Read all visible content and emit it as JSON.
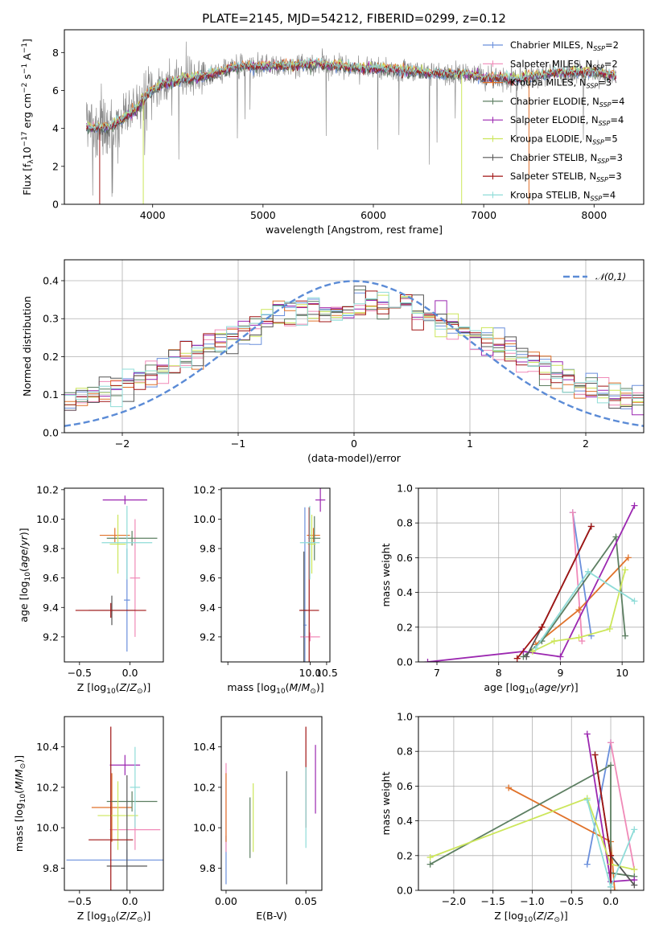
{
  "figure": {
    "title": "PLATE=2145, MJD=54212, FIBERID=0299, z=0.12"
  },
  "colors": {
    "Chabrier MILES": "#6a8fdc",
    "Salpeter MILES": "#f08ab8",
    "Kroupa MILES": "#e0722a",
    "Chabrier ELODIE": "#5d7f62",
    "Salpeter ELODIE": "#9b27b0",
    "Kroupa ELODIE": "#cce65a",
    "Chabrier STELIB": "#555555",
    "Salpeter STELIB": "#a01414",
    "Kroupa STELIB": "#8fdcd8",
    "data": "#808080",
    "normal": "#5b8bd6"
  },
  "chart_data": [
    {
      "id": "spectrum",
      "type": "line",
      "xlabel": "wavelength [Angstrom, rest frame]",
      "ylabel": "Flux [f_λ 10^-17 erg cm^-2 s^-1 A^-1]",
      "xlim": [
        3200,
        8450
      ],
      "ylim": [
        0,
        9.2
      ],
      "xticks": [
        4000,
        5000,
        6000,
        7000,
        8000
      ],
      "yticks": [
        0,
        2,
        4,
        6,
        8
      ],
      "grid": false,
      "legend_position": "top-right",
      "series": [
        {
          "name": "Chabrier MILES, N_SSP=2",
          "key": "Chabrier MILES"
        },
        {
          "name": "Salpeter MILES, N_SSP=2",
          "key": "Salpeter MILES"
        },
        {
          "name": "Kroupa MILES, N_SSP=3",
          "key": "Kroupa MILES"
        },
        {
          "name": "Chabrier ELODIE, N_SSP=4",
          "key": "Chabrier ELODIE"
        },
        {
          "name": "Salpeter ELODIE, N_SSP=4",
          "key": "Salpeter ELODIE"
        },
        {
          "name": "Kroupa ELODIE, N_SSP=5",
          "key": "Kroupa ELODIE"
        },
        {
          "name": "Chabrier STELIB, N_SSP=3",
          "key": "Chabrier STELIB"
        },
        {
          "name": "Salpeter STELIB, N_SSP=3",
          "key": "Salpeter STELIB"
        },
        {
          "name": "Kroupa STELIB, N_SSP=4",
          "key": "Kroupa STELIB"
        }
      ],
      "continuum": [
        [
          3400,
          4.1
        ],
        [
          3500,
          4.0
        ],
        [
          3600,
          4.0
        ],
        [
          3700,
          4.4
        ],
        [
          3850,
          5.0
        ],
        [
          3950,
          5.8
        ],
        [
          4100,
          6.4
        ],
        [
          4300,
          6.6
        ],
        [
          4500,
          6.8
        ],
        [
          4800,
          7.3
        ],
        [
          5200,
          7.3
        ],
        [
          5500,
          7.4
        ],
        [
          5800,
          7.2
        ],
        [
          6200,
          7.1
        ],
        [
          6500,
          6.9
        ],
        [
          6800,
          6.9
        ],
        [
          7000,
          6.7
        ],
        [
          7300,
          6.6
        ],
        [
          7600,
          6.9
        ],
        [
          8000,
          7.0
        ],
        [
          8200,
          6.7
        ]
      ]
    },
    {
      "id": "histogram",
      "type": "bar",
      "xlabel": "(data-model)/error",
      "ylabel": "Normed distribution",
      "xlim": [
        -2.5,
        2.5
      ],
      "ylim": [
        0,
        0.455
      ],
      "xticks": [
        -2,
        -1,
        0,
        1,
        2
      ],
      "yticks": [
        0.0,
        0.1,
        0.2,
        0.3,
        0.4
      ],
      "grid": true,
      "legend_position": "top-right",
      "legend": [
        "𝒩(0,1)"
      ],
      "bin_width": 0.1,
      "normal_curve": {
        "mean": 0,
        "sigma": 1
      }
    },
    {
      "id": "age-vs-Z",
      "type": "scatter",
      "xlabel": "Z [log10(Z/Z⊙)]",
      "ylabel": "age [log10(age/yr)]",
      "xlim": [
        -0.65,
        0.33
      ],
      "ylim": [
        9.03,
        10.21
      ],
      "xticks": [
        -0.5,
        0.0
      ],
      "yticks": [
        9.2,
        9.4,
        9.6,
        9.8,
        10.0,
        10.2
      ],
      "grid": false,
      "points": [
        {
          "model": "Chabrier MILES",
          "x": -0.03,
          "y": 9.45,
          "xerr": 0.03,
          "yerr": 0.35
        },
        {
          "model": "Salpeter MILES",
          "x": 0.05,
          "y": 9.6,
          "xerr": 0.05,
          "yerr": 0.4
        },
        {
          "model": "Kroupa MILES",
          "x": -0.15,
          "y": 9.89,
          "xerr": 0.15,
          "yerr": 0.05
        },
        {
          "model": "Chabrier ELODIE",
          "x": 0.02,
          "y": 9.87,
          "xerr": 0.25,
          "yerr": 0.05
        },
        {
          "model": "Salpeter ELODIE",
          "x": -0.05,
          "y": 10.13,
          "xerr": 0.22,
          "yerr": 0.03
        },
        {
          "model": "Kroupa ELODIE",
          "x": -0.12,
          "y": 9.83,
          "xerr": 0.08,
          "yerr": 0.2
        },
        {
          "model": "Chabrier STELIB",
          "x": -0.18,
          "y": 9.38,
          "xerr": 0.23,
          "yerr": 0.1
        },
        {
          "model": "Salpeter STELIB",
          "x": -0.19,
          "y": 9.38,
          "xerr": 0.35,
          "yerr": 0.05
        },
        {
          "model": "Kroupa STELIB",
          "x": -0.03,
          "y": 9.84,
          "xerr": 0.25,
          "yerr": 0.25
        }
      ]
    },
    {
      "id": "age-vs-mass",
      "type": "scatter",
      "xlabel": "mass [log10(M/M⊙)]",
      "ylabel": "",
      "xlim": [
        7.3,
        10.6
      ],
      "ylim": [
        9.03,
        10.21
      ],
      "xticks": [
        7.5,
        10.0,
        10.5
      ],
      "xtick_labels": [
        "",
        "10.0",
        "10.5"
      ],
      "yticks": [
        9.2,
        9.4,
        9.6,
        9.8,
        10.0,
        10.2
      ],
      "grid": false,
      "points": [
        {
          "model": "Chabrier MILES",
          "x": 9.84,
          "y": 9.28,
          "xerr": 0.05,
          "yerr": 0.8
        },
        {
          "model": "Salpeter MILES",
          "x": 10.0,
          "y": 9.2,
          "xerr": 0.3,
          "yerr": 0.03
        },
        {
          "model": "Kroupa MILES",
          "x": 10.1,
          "y": 9.89,
          "xerr": 0.2,
          "yerr": 0.05
        },
        {
          "model": "Chabrier ELODIE",
          "x": 10.13,
          "y": 9.87,
          "xerr": 0.18,
          "yerr": 0.15
        },
        {
          "model": "Salpeter ELODIE",
          "x": 10.31,
          "y": 10.13,
          "xerr": 0.15,
          "yerr": 0.08
        },
        {
          "model": "Kroupa ELODIE",
          "x": 10.05,
          "y": 9.83,
          "xerr": 0.12,
          "yerr": 0.2
        },
        {
          "model": "Chabrier STELIB",
          "x": 9.81,
          "y": 9.38,
          "xerr": 0.1,
          "yerr": 0.4
        },
        {
          "model": "Salpeter STELIB",
          "x": 9.97,
          "y": 9.38,
          "xerr": 0.3,
          "yerr": 0.7
        },
        {
          "model": "Kroupa STELIB",
          "x": 9.99,
          "y": 9.84,
          "xerr": 0.3,
          "yerr": 0.25
        }
      ]
    },
    {
      "id": "mass-weight-vs-age",
      "type": "line",
      "xlabel": "age [log10(age/yr)]",
      "ylabel": "mass weight",
      "xlim": [
        6.7,
        10.35
      ],
      "ylim": [
        0,
        1.0
      ],
      "xticks": [
        7,
        8,
        9,
        10
      ],
      "yticks": [
        0.0,
        0.2,
        0.4,
        0.6,
        0.8,
        1.0
      ],
      "grid": true,
      "series": [
        {
          "model": "Chabrier MILES",
          "points": [
            [
              9.2,
              0.86
            ],
            [
              9.5,
              0.15
            ]
          ]
        },
        {
          "model": "Salpeter MILES",
          "points": [
            [
              9.2,
              0.86
            ],
            [
              9.35,
              0.12
            ]
          ]
        },
        {
          "model": "Kroupa MILES",
          "points": [
            [
              8.6,
              0.1
            ],
            [
              9.3,
              0.3
            ],
            [
              10.1,
              0.6
            ]
          ]
        },
        {
          "model": "Chabrier ELODIE",
          "points": [
            [
              8.4,
              0.03
            ],
            [
              8.7,
              0.12
            ],
            [
              9.9,
              0.72
            ],
            [
              10.05,
              0.15
            ]
          ]
        },
        {
          "model": "Salpeter ELODIE",
          "points": [
            [
              6.85,
              0.0
            ],
            [
              8.4,
              0.06
            ],
            [
              9.0,
              0.03
            ],
            [
              10.2,
              0.9
            ]
          ]
        },
        {
          "model": "Kroupa ELODIE",
          "points": [
            [
              8.55,
              0.06
            ],
            [
              8.9,
              0.12
            ],
            [
              9.3,
              0.14
            ],
            [
              9.8,
              0.19
            ],
            [
              10.05,
              0.53
            ]
          ]
        },
        {
          "model": "Chabrier STELIB",
          "points": [
            [
              8.45,
              0.03
            ],
            [
              8.7,
              0.2
            ],
            [
              9.5,
              0.78
            ]
          ]
        },
        {
          "model": "Salpeter STELIB",
          "points": [
            [
              8.3,
              0.02
            ],
            [
              8.7,
              0.2
            ],
            [
              9.5,
              0.78
            ]
          ]
        },
        {
          "model": "Kroupa STELIB",
          "points": [
            [
              8.6,
              0.08
            ],
            [
              9.45,
              0.52
            ],
            [
              10.2,
              0.35
            ]
          ]
        }
      ]
    },
    {
      "id": "mass-vs-Z",
      "type": "scatter",
      "xlabel": "Z [log10(Z/Z⊙)]",
      "ylabel": "mass [log10(M/M⊙)]",
      "xlim": [
        -0.65,
        0.33
      ],
      "ylim": [
        9.69,
        10.55
      ],
      "xticks": [
        -0.5,
        0.0
      ],
      "yticks": [
        9.8,
        10.0,
        10.2,
        10.4
      ],
      "grid": false,
      "points": [
        {
          "model": "Chabrier MILES",
          "x": -0.03,
          "y": 9.84,
          "xerr": 0.6,
          "yerr": 0.05
        },
        {
          "model": "Salpeter MILES",
          "x": 0.05,
          "y": 9.99,
          "xerr": 0.25,
          "yerr": 0.1
        },
        {
          "model": "Kroupa MILES",
          "x": -0.18,
          "y": 10.1,
          "xerr": 0.2,
          "yerr": 0.17
        },
        {
          "model": "Chabrier ELODIE",
          "x": 0.02,
          "y": 10.13,
          "xerr": 0.25,
          "yerr": 0.05
        },
        {
          "model": "Salpeter ELODIE",
          "x": -0.05,
          "y": 10.31,
          "xerr": 0.15,
          "yerr": 0.05
        },
        {
          "model": "Kroupa ELODIE",
          "x": -0.12,
          "y": 10.06,
          "xerr": 0.2,
          "yerr": 0.17
        },
        {
          "model": "Chabrier STELIB",
          "x": -0.03,
          "y": 9.81,
          "xerr": 0.2,
          "yerr": 0.45
        },
        {
          "model": "Salpeter STELIB",
          "x": -0.19,
          "y": 9.94,
          "xerr": 0.22,
          "yerr": 0.56
        },
        {
          "model": "Kroupa STELIB",
          "x": 0.05,
          "y": 10.2,
          "xerr": 0.05,
          "yerr": 0.2
        }
      ]
    },
    {
      "id": "mass-vs-EBV",
      "type": "scatter",
      "xlabel": "E(B-V)",
      "ylabel": "",
      "xlim": [
        -0.003,
        0.06
      ],
      "ylim": [
        9.69,
        10.55
      ],
      "xticks": [
        0.0,
        0.05
      ],
      "xtick_labels": [
        "0.00",
        "0.05"
      ],
      "yticks": [
        9.8,
        10.0,
        10.2,
        10.4
      ],
      "grid": false,
      "points": [
        {
          "model": "Chabrier MILES",
          "x": 0.0,
          "y": 9.84,
          "yerr": 0.12
        },
        {
          "model": "Salpeter MILES",
          "x": 0.0,
          "y": 10.1,
          "yerr": 0.22
        },
        {
          "model": "Kroupa MILES",
          "x": 0.0,
          "y": 10.1,
          "yerr": 0.17
        },
        {
          "model": "Chabrier ELODIE",
          "x": 0.015,
          "y": 10.0,
          "yerr": 0.15
        },
        {
          "model": "Salpeter ELODIE",
          "x": 0.056,
          "y": 10.24,
          "yerr": 0.17
        },
        {
          "model": "Kroupa ELODIE",
          "x": 0.017,
          "y": 10.05,
          "yerr": 0.17
        },
        {
          "model": "Chabrier STELIB",
          "x": 0.038,
          "y": 10.0,
          "yerr": 0.28
        },
        {
          "model": "Salpeter STELIB",
          "x": 0.05,
          "y": 10.25,
          "yerr": 0.25
        },
        {
          "model": "Kroupa STELIB",
          "x": 0.05,
          "y": 10.1,
          "yerr": 0.2
        }
      ]
    },
    {
      "id": "mass-weight-vs-Z",
      "type": "line",
      "xlabel": "Z [log10(Z/Z⊙)]",
      "ylabel": "mass weight",
      "xlim": [
        -2.45,
        0.42
      ],
      "ylim": [
        0,
        1.0
      ],
      "xticks": [
        -2.0,
        -1.5,
        -1.0,
        -0.5,
        0.0
      ],
      "yticks": [
        0.0,
        0.2,
        0.4,
        0.6,
        0.8,
        1.0
      ],
      "grid": true,
      "series": [
        {
          "model": "Chabrier MILES",
          "points": [
            [
              -0.3,
              0.15
            ],
            [
              0.0,
              0.85
            ]
          ]
        },
        {
          "model": "Salpeter MILES",
          "points": [
            [
              0.0,
              0.85
            ],
            [
              0.3,
              0.12
            ]
          ]
        },
        {
          "model": "Kroupa MILES",
          "points": [
            [
              -1.3,
              0.59
            ],
            [
              0.0,
              0.28
            ],
            [
              0.05,
              0.0
            ]
          ]
        },
        {
          "model": "Chabrier ELODIE",
          "points": [
            [
              -2.3,
              0.15
            ],
            [
              0.0,
              0.72
            ],
            [
              0.0,
              0.1
            ],
            [
              0.3,
              0.08
            ]
          ]
        },
        {
          "model": "Salpeter ELODIE",
          "points": [
            [
              -0.3,
              0.9
            ],
            [
              0.0,
              0.05
            ],
            [
              0.3,
              0.06
            ]
          ]
        },
        {
          "model": "Kroupa ELODIE",
          "points": [
            [
              -2.3,
              0.19
            ],
            [
              -0.3,
              0.53
            ],
            [
              0.0,
              0.15
            ],
            [
              0.3,
              0.12
            ]
          ]
        },
        {
          "model": "Chabrier STELIB",
          "points": [
            [
              -0.2,
              0.78
            ],
            [
              0.0,
              0.2
            ],
            [
              0.3,
              0.03
            ]
          ]
        },
        {
          "model": "Salpeter STELIB",
          "points": [
            [
              -0.2,
              0.78
            ],
            [
              0.0,
              0.2
            ],
            [
              0.0,
              0.02
            ]
          ]
        },
        {
          "model": "Kroupa STELIB",
          "points": [
            [
              -0.3,
              0.52
            ],
            [
              0.0,
              0.02
            ],
            [
              0.3,
              0.35
            ]
          ]
        }
      ]
    }
  ]
}
